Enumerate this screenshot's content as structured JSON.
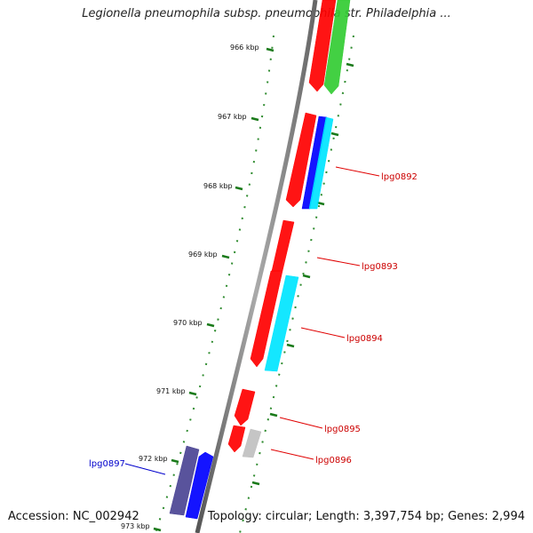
{
  "title": "Legionella pneumophila subsp. pneumophila str. Philadelphia ...",
  "footer": {
    "accession": "Accession: NC_002942",
    "summary": "Topology: circular; Length: 3,397,754 bp; Genes: 2,994"
  },
  "ruler": {
    "unit": "kbp",
    "ticks": [
      "966 kbp",
      "967 kbp",
      "968 kbp",
      "969 kbp",
      "970 kbp",
      "971 kbp",
      "972 kbp",
      "973 kbp"
    ]
  },
  "tracks": {
    "red": "#ff0000",
    "green": "#33cc33",
    "blue": "#0000ff",
    "cyan": "#00e5ff",
    "gray": "#c0c0c0",
    "navy": "#4b4494"
  },
  "gene_labels": [
    {
      "name": "lpg0892",
      "color": "#cc0000"
    },
    {
      "name": "lpg0893",
      "color": "#cc0000"
    },
    {
      "name": "lpg0894",
      "color": "#cc0000"
    },
    {
      "name": "lpg0895",
      "color": "#cc0000"
    },
    {
      "name": "lpg0896",
      "color": "#cc0000"
    },
    {
      "name": "lpg0897",
      "color": "#0000cc"
    }
  ]
}
